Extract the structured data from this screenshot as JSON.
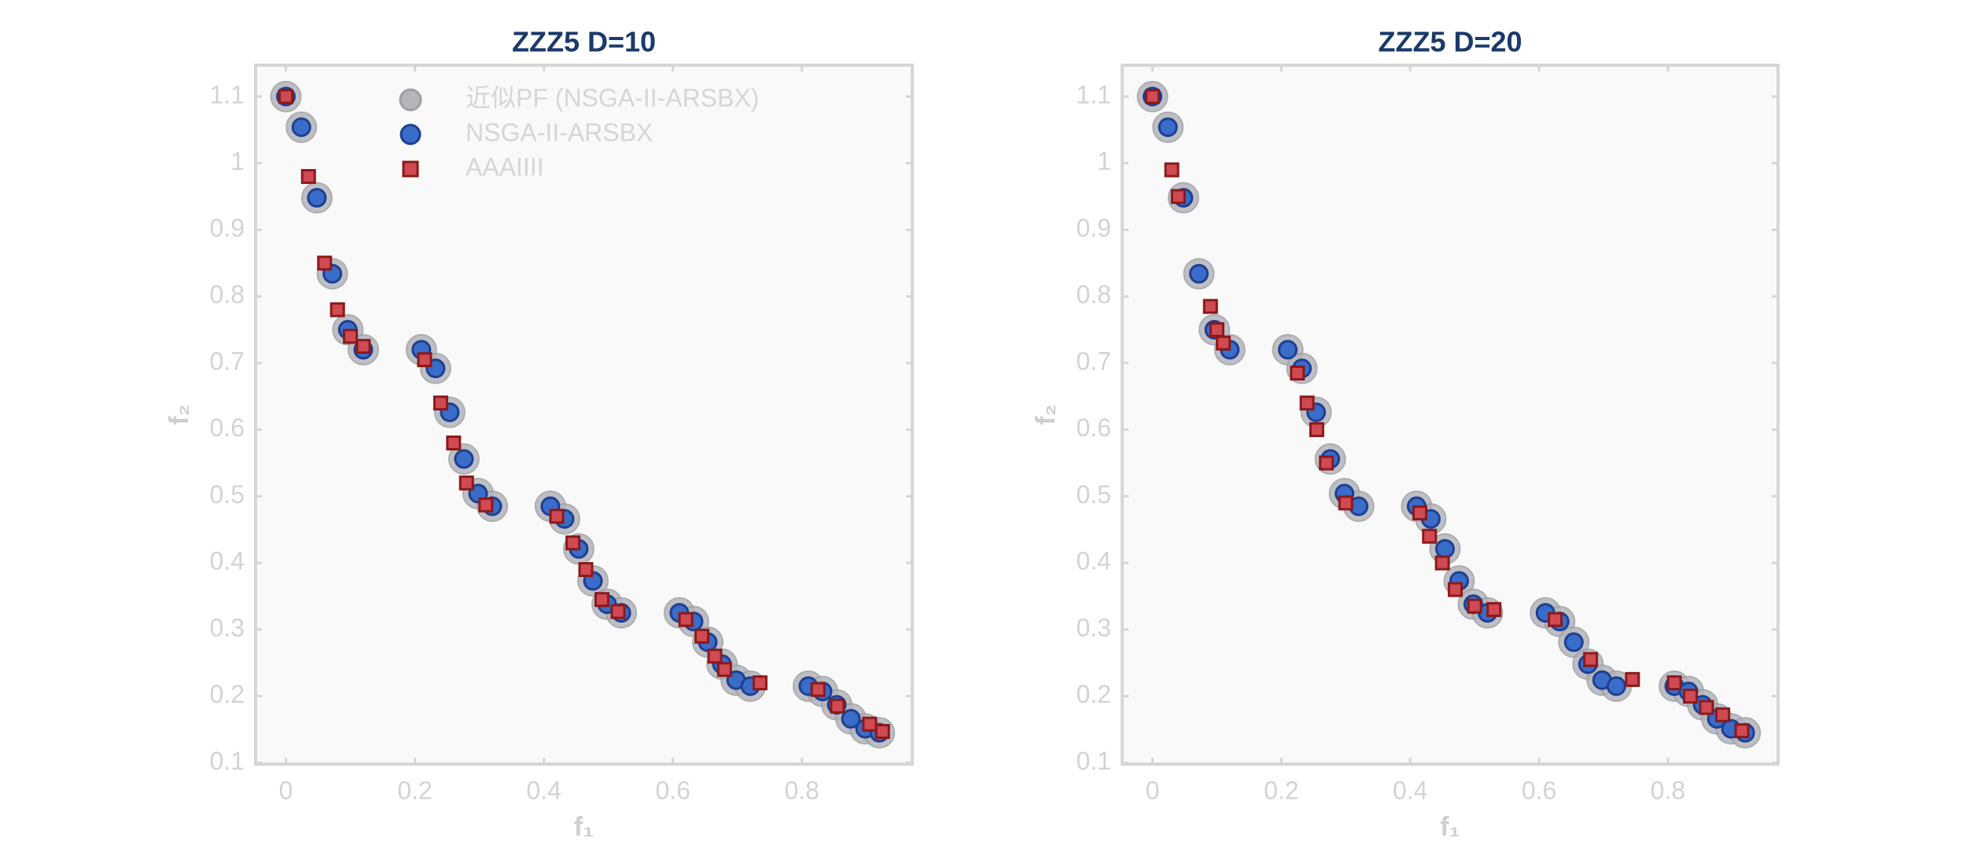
{
  "chart_data": [
    {
      "type": "scatter",
      "title": "ZZZ5 D=10",
      "xlabel": "f₁",
      "ylabel": "f₂",
      "xlim": [
        -0.047,
        0.971
      ],
      "ylim": [
        0.098,
        1.147
      ],
      "xticks": [
        0,
        0.2,
        0.4,
        0.6,
        0.8
      ],
      "yticks": [
        0.1,
        0.2,
        0.3,
        0.4,
        0.5,
        0.6,
        0.7,
        0.8,
        0.9,
        1,
        1.1
      ],
      "legend": true,
      "legend_position": "upper center",
      "series": [
        {
          "name": "近似PF (NSGA-II-ARSBX)",
          "color": "#b4b6bb",
          "marker": "circle",
          "x": [
            0,
            0.024,
            0.048,
            0.072,
            0.096,
            0.12,
            0.21,
            0.232,
            0.254,
            0.276,
            0.298,
            0.32,
            0.41,
            0.432,
            0.454,
            0.476,
            0.498,
            0.52,
            0.61,
            0.632,
            0.654,
            0.676,
            0.698,
            0.72,
            0.81,
            0.832,
            0.854,
            0.876,
            0.898,
            0.92
          ],
          "values": [
            1.1,
            1.054,
            0.948,
            0.834,
            0.75,
            0.72,
            0.72,
            0.692,
            0.626,
            0.556,
            0.504,
            0.485,
            0.485,
            0.466,
            0.421,
            0.373,
            0.338,
            0.325,
            0.325,
            0.312,
            0.281,
            0.248,
            0.224,
            0.215,
            0.215,
            0.207,
            0.187,
            0.166,
            0.151,
            0.145
          ]
        },
        {
          "name": "NSGA-II-ARSBX",
          "color": "#3a6cc9",
          "marker": "circle",
          "x": [
            0,
            0.024,
            0.048,
            0.072,
            0.096,
            0.12,
            0.21,
            0.232,
            0.254,
            0.276,
            0.298,
            0.32,
            0.41,
            0.432,
            0.454,
            0.476,
            0.498,
            0.52,
            0.61,
            0.632,
            0.654,
            0.676,
            0.698,
            0.72,
            0.81,
            0.832,
            0.854,
            0.876,
            0.898,
            0.92
          ],
          "values": [
            1.1,
            1.054,
            0.948,
            0.834,
            0.75,
            0.72,
            0.72,
            0.692,
            0.626,
            0.556,
            0.504,
            0.485,
            0.485,
            0.466,
            0.421,
            0.373,
            0.338,
            0.325,
            0.325,
            0.312,
            0.281,
            0.248,
            0.224,
            0.215,
            0.215,
            0.207,
            0.187,
            0.166,
            0.151,
            0.145
          ]
        },
        {
          "name": "AAAIIII",
          "color": "#cf4a52",
          "marker": "square",
          "x": [
            0,
            0.035,
            0.06,
            0.08,
            0.1,
            0.12,
            0.215,
            0.24,
            0.26,
            0.28,
            0.31,
            0.42,
            0.445,
            0.465,
            0.49,
            0.515,
            0.62,
            0.645,
            0.665,
            0.68,
            0.735,
            0.825,
            0.855,
            0.905,
            0.925
          ],
          "values": [
            1.1,
            0.98,
            0.85,
            0.78,
            0.74,
            0.725,
            0.705,
            0.64,
            0.58,
            0.52,
            0.487,
            0.47,
            0.43,
            0.39,
            0.345,
            0.327,
            0.315,
            0.29,
            0.26,
            0.24,
            0.22,
            0.21,
            0.185,
            0.158,
            0.147
          ]
        }
      ]
    },
    {
      "type": "scatter",
      "title": "ZZZ5 D=20",
      "xlabel": "f₁",
      "ylabel": "f₂",
      "xlim": [
        -0.047,
        0.971
      ],
      "ylim": [
        0.098,
        1.147
      ],
      "xticks": [
        0,
        0.2,
        0.4,
        0.6,
        0.8
      ],
      "yticks": [
        0.1,
        0.2,
        0.3,
        0.4,
        0.5,
        0.6,
        0.7,
        0.8,
        0.9,
        1,
        1.1
      ],
      "legend": false,
      "series": [
        {
          "name": "近似PF (NSGA-II-ARSBX)",
          "color": "#b4b6bb",
          "marker": "circle",
          "x": [
            0,
            0.024,
            0.048,
            0.072,
            0.096,
            0.12,
            0.21,
            0.232,
            0.254,
            0.276,
            0.298,
            0.32,
            0.41,
            0.432,
            0.454,
            0.476,
            0.498,
            0.52,
            0.61,
            0.632,
            0.654,
            0.676,
            0.698,
            0.72,
            0.81,
            0.832,
            0.854,
            0.876,
            0.898,
            0.92
          ],
          "values": [
            1.1,
            1.054,
            0.948,
            0.834,
            0.75,
            0.72,
            0.72,
            0.692,
            0.626,
            0.556,
            0.504,
            0.485,
            0.485,
            0.466,
            0.421,
            0.373,
            0.338,
            0.325,
            0.325,
            0.312,
            0.281,
            0.248,
            0.224,
            0.215,
            0.215,
            0.207,
            0.187,
            0.166,
            0.151,
            0.145
          ]
        },
        {
          "name": "NSGA-II-ARSBX",
          "color": "#3a6cc9",
          "marker": "circle",
          "x": [
            0,
            0.024,
            0.048,
            0.072,
            0.096,
            0.12,
            0.21,
            0.232,
            0.254,
            0.276,
            0.298,
            0.32,
            0.41,
            0.432,
            0.454,
            0.476,
            0.498,
            0.52,
            0.61,
            0.632,
            0.654,
            0.676,
            0.698,
            0.72,
            0.81,
            0.832,
            0.854,
            0.876,
            0.898,
            0.92
          ],
          "values": [
            1.1,
            1.054,
            0.948,
            0.834,
            0.75,
            0.72,
            0.72,
            0.692,
            0.626,
            0.556,
            0.504,
            0.485,
            0.485,
            0.466,
            0.421,
            0.373,
            0.338,
            0.325,
            0.325,
            0.312,
            0.281,
            0.248,
            0.224,
            0.215,
            0.215,
            0.207,
            0.187,
            0.166,
            0.151,
            0.145
          ]
        },
        {
          "name": "AAAIIII",
          "color": "#cf4a52",
          "marker": "square",
          "x": [
            0,
            0.03,
            0.04,
            0.09,
            0.1,
            0.11,
            0.225,
            0.24,
            0.255,
            0.27,
            0.3,
            0.415,
            0.43,
            0.45,
            0.47,
            0.5,
            0.53,
            0.625,
            0.68,
            0.745,
            0.81,
            0.835,
            0.86,
            0.885,
            0.915
          ],
          "values": [
            1.1,
            0.99,
            0.95,
            0.785,
            0.75,
            0.73,
            0.685,
            0.64,
            0.6,
            0.55,
            0.49,
            0.475,
            0.44,
            0.4,
            0.36,
            0.335,
            0.33,
            0.315,
            0.255,
            0.225,
            0.22,
            0.2,
            0.183,
            0.172,
            0.148
          ]
        }
      ]
    }
  ]
}
